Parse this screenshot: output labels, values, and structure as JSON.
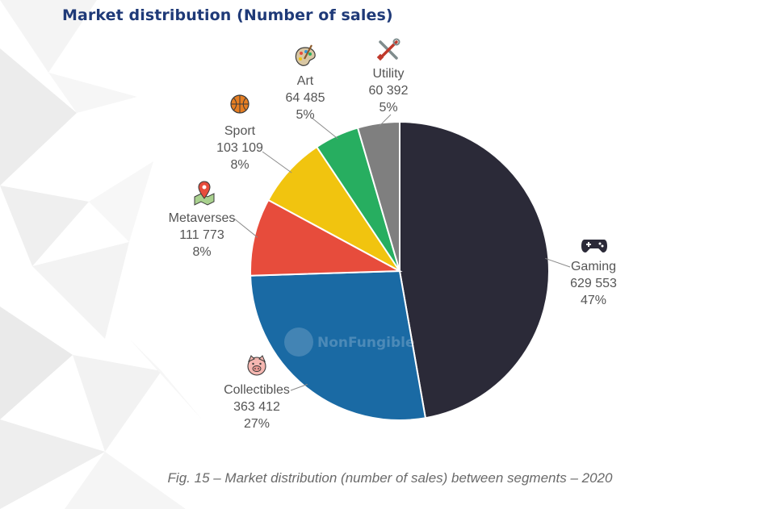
{
  "title": "Market distribution (Number of sales)",
  "caption": "Fig. 15 – Market distribution (number of sales) between segments – 2020",
  "watermark": "NonFungible",
  "chart_data": {
    "type": "pie",
    "title": "Market distribution (Number of sales)",
    "start_angle_deg": 0,
    "direction": "clockwise",
    "slices": [
      {
        "name": "Gaming",
        "value": 629553,
        "value_label": "629 553",
        "percent": "47%",
        "color": "#2b2a38",
        "icon": "gamepad-icon"
      },
      {
        "name": "Collectibles",
        "value": 363412,
        "value_label": "363 412",
        "percent": "27%",
        "color": "#1a6aa4",
        "icon": "pig-face-icon"
      },
      {
        "name": "Metaverses",
        "value": 111773,
        "value_label": "111 773",
        "percent": "8%",
        "color": "#e74c3c",
        "icon": "map-pin-icon"
      },
      {
        "name": "Sport",
        "value": 103109,
        "value_label": "103 109",
        "percent": "8%",
        "color": "#f1c40f",
        "icon": "basketball-icon"
      },
      {
        "name": "Art",
        "value": 64485,
        "value_label": "64 485",
        "percent": "5%",
        "color": "#27ae60",
        "icon": "palette-icon"
      },
      {
        "name": "Utility",
        "value": 60392,
        "value_label": "60 392",
        "percent": "5%",
        "color": "#7f7f7f",
        "icon": "tools-icon"
      }
    ]
  }
}
